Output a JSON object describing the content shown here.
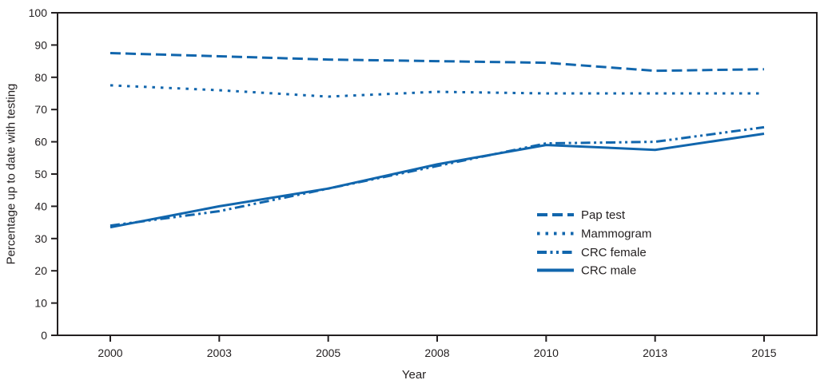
{
  "chart_data": {
    "type": "line",
    "title": "",
    "xlabel": "Year",
    "ylabel": "Percentage up to date with testing",
    "ylim": [
      0,
      100
    ],
    "yticks": [
      0,
      10,
      20,
      30,
      40,
      50,
      60,
      70,
      80,
      90,
      100
    ],
    "categories": [
      "2000",
      "2003",
      "2005",
      "2008",
      "2010",
      "2013",
      "2015"
    ],
    "grid": false,
    "legend_position": "right-center",
    "line_color": "#1166AD",
    "axis_color": "#231f20",
    "series": [
      {
        "name": "Pap test",
        "line_style": "dashed",
        "values": [
          87.5,
          86.5,
          85.5,
          85.0,
          84.5,
          82.0,
          82.5
        ]
      },
      {
        "name": "Mammogram",
        "line_style": "dotted",
        "values": [
          77.5,
          76.0,
          74.0,
          75.5,
          75.0,
          75.0,
          75.0
        ]
      },
      {
        "name": "CRC female",
        "line_style": "dash-dot",
        "values": [
          34.0,
          38.5,
          45.5,
          52.5,
          59.5,
          60.0,
          64.5
        ]
      },
      {
        "name": "CRC male",
        "line_style": "solid",
        "values": [
          33.5,
          40.0,
          45.5,
          53.0,
          59.0,
          57.5,
          62.5
        ]
      }
    ]
  }
}
